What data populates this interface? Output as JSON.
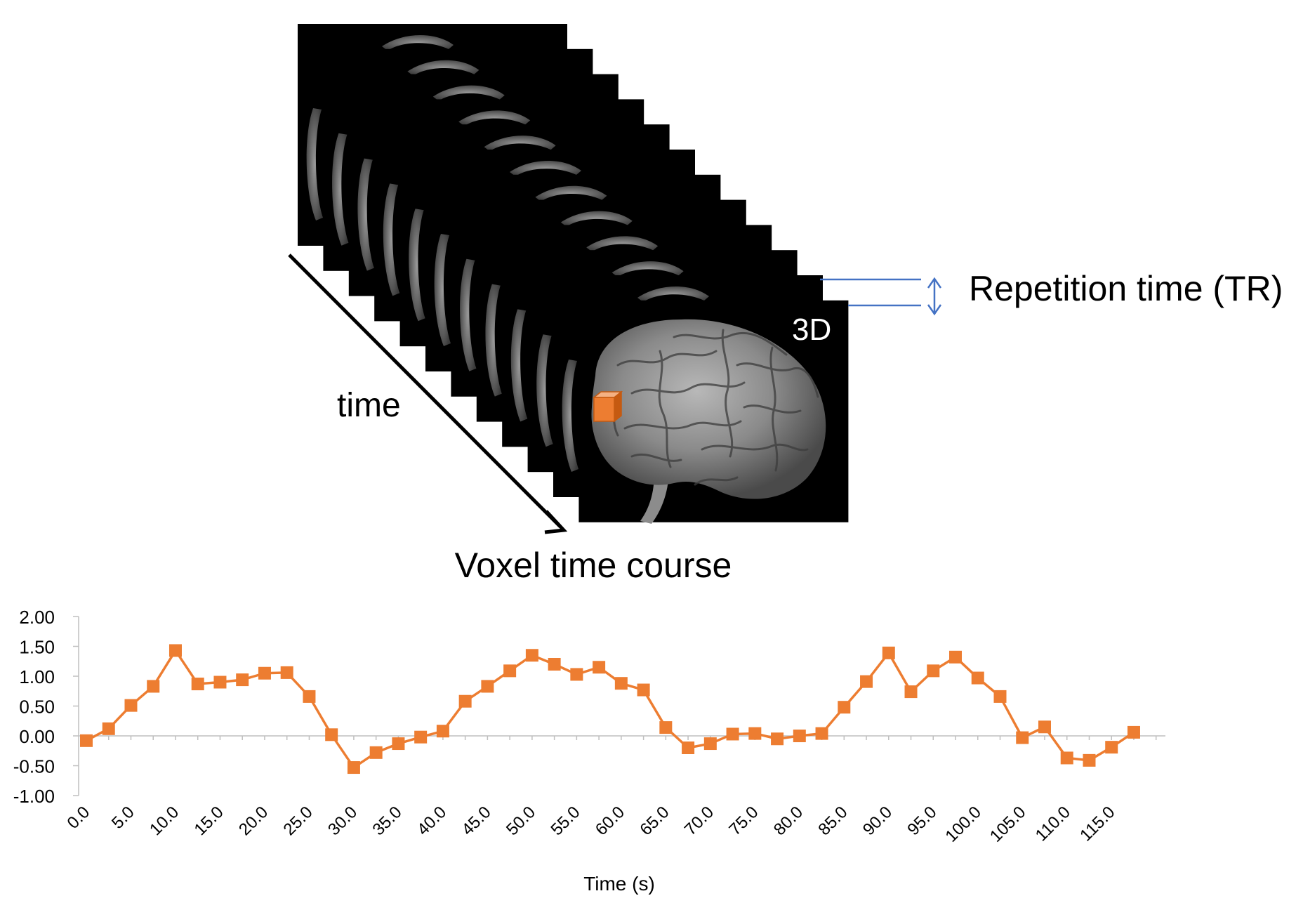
{
  "diagram": {
    "frame_label": "3D",
    "time_arrow_label": "time",
    "tr_label": "Repetition time (TR)",
    "section_title": "Voxel time course",
    "colors": {
      "frame": "#000000",
      "accent": "#ED7D31",
      "tr_bracket": "#4472C4"
    }
  },
  "chart_data": {
    "type": "line",
    "xlabel": "Time (s)",
    "ylabel": "",
    "ylim": [
      -1.0,
      2.0
    ],
    "y_ticks": [
      "2.00",
      "1.50",
      "1.00",
      "0.50",
      "0.00",
      "-0.50",
      "-1.00"
    ],
    "y_tick_values": [
      2.0,
      1.5,
      1.0,
      0.5,
      0.0,
      -0.5,
      -1.0
    ],
    "x_ticks": [
      "0.0",
      "5.0",
      "10.0",
      "15.0",
      "20.0",
      "25.0",
      "30.0",
      "35.0",
      "40.0",
      "45.0",
      "50.0",
      "55.0",
      "60.0",
      "65.0",
      "70.0",
      "75.0",
      "80.0",
      "85.0",
      "90.0",
      "95.0",
      "100.0",
      "105.0",
      "110.0",
      "115.0"
    ],
    "x_tick_values": [
      0,
      5,
      10,
      15,
      20,
      25,
      30,
      35,
      40,
      45,
      50,
      55,
      60,
      65,
      70,
      75,
      80,
      85,
      90,
      95,
      100,
      105,
      110,
      115
    ],
    "grid": false,
    "series": [
      {
        "color": "#ED7D31",
        "marker": "square",
        "x": [
          0.0,
          2.5,
          5.0,
          7.5,
          10.0,
          12.5,
          15.0,
          17.5,
          20.0,
          22.5,
          25.0,
          27.5,
          30.0,
          32.5,
          35.0,
          37.5,
          40.0,
          42.5,
          45.0,
          47.5,
          50.0,
          52.5,
          55.0,
          57.5,
          60.0,
          62.5,
          65.0,
          67.5,
          70.0,
          72.5,
          75.0,
          77.5,
          80.0,
          82.5,
          85.0,
          87.5,
          90.0,
          92.5,
          95.0,
          97.5,
          100.0,
          102.5,
          105.0,
          107.5,
          110.0,
          112.5,
          115.0,
          117.5
        ],
        "values": [
          -0.08,
          0.12,
          0.51,
          0.83,
          1.43,
          0.87,
          0.9,
          0.94,
          1.05,
          1.06,
          0.66,
          0.02,
          -0.53,
          -0.28,
          -0.13,
          -0.02,
          0.08,
          0.58,
          0.83,
          1.09,
          1.35,
          1.2,
          1.03,
          1.15,
          0.88,
          0.77,
          0.14,
          -0.2,
          -0.13,
          0.03,
          0.04,
          -0.05,
          0.0,
          0.04,
          0.48,
          0.91,
          1.39,
          0.74,
          1.09,
          1.32,
          0.97,
          0.66,
          -0.03,
          0.15,
          -0.37,
          -0.41,
          -0.19,
          0.06
        ]
      }
    ]
  }
}
